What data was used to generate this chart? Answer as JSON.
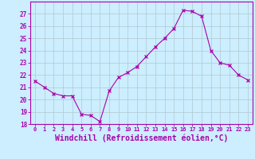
{
  "x": [
    0,
    1,
    2,
    3,
    4,
    5,
    6,
    7,
    8,
    9,
    10,
    11,
    12,
    13,
    14,
    15,
    16,
    17,
    18,
    19,
    20,
    21,
    22,
    23
  ],
  "y": [
    21.5,
    21.0,
    20.5,
    20.3,
    20.3,
    18.8,
    18.7,
    18.2,
    20.7,
    21.8,
    22.2,
    22.7,
    23.5,
    24.3,
    25.0,
    25.8,
    27.3,
    27.2,
    26.8,
    24.0,
    23.0,
    22.8,
    22.0,
    21.6
  ],
  "line_color": "#aa00aa",
  "marker": "x",
  "marker_size": 3,
  "xlabel": "Windchill (Refroidissement éolien,°C)",
  "xlabel_fontsize": 7,
  "ylim": [
    18,
    28
  ],
  "xlim": [
    -0.5,
    23.5
  ],
  "yticks": [
    18,
    19,
    20,
    21,
    22,
    23,
    24,
    25,
    26,
    27
  ],
  "xticks": [
    0,
    1,
    2,
    3,
    4,
    5,
    6,
    7,
    8,
    9,
    10,
    11,
    12,
    13,
    14,
    15,
    16,
    17,
    18,
    19,
    20,
    21,
    22,
    23
  ],
  "xtick_labels": [
    "0",
    "1",
    "2",
    "3",
    "4",
    "5",
    "6",
    "7",
    "8",
    "9",
    "10",
    "11",
    "12",
    "13",
    "14",
    "15",
    "16",
    "17",
    "18",
    "19",
    "20",
    "21",
    "22",
    "23"
  ],
  "background_color": "#cceeff",
  "grid_color": "#b0c8d0",
  "tick_color": "#aa00aa",
  "label_color": "#aa00aa",
  "spine_color": "#aa00aa"
}
